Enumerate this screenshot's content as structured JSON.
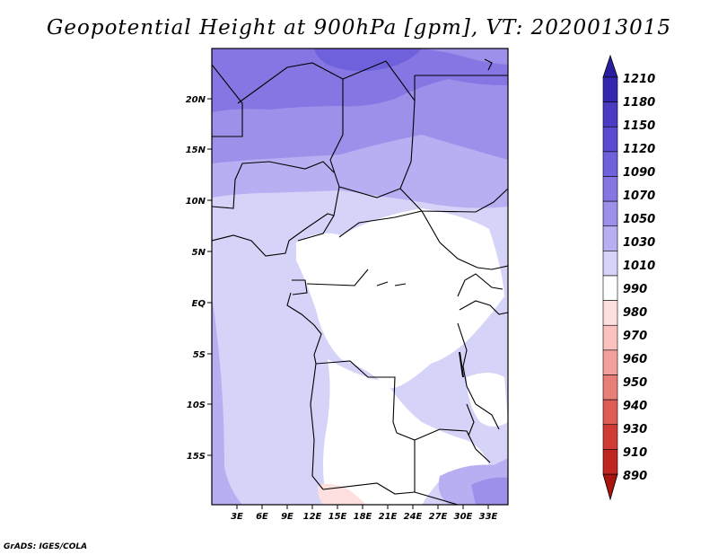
{
  "title": "Geopotential Height at 900hPa [gpm], VT: 2020013015",
  "footer": "GrADS: IGES/COLA",
  "map": {
    "lat_labels": [
      "20N",
      "15N",
      "10N",
      "5N",
      "EQ",
      "5S",
      "10S",
      "15S"
    ],
    "lon_labels": [
      "3E",
      "6E",
      "9E",
      "12E",
      "15E",
      "18E",
      "21E",
      "24E",
      "27E",
      "30E",
      "33E"
    ]
  },
  "legend": {
    "levels": [
      "1210",
      "1180",
      "1150",
      "1120",
      "1090",
      "1070",
      "1050",
      "1030",
      "1010",
      "990",
      "980",
      "970",
      "960",
      "950",
      "940",
      "930",
      "910",
      "890"
    ],
    "colors": [
      "#2a1f9e",
      "#3528b0",
      "#4a3bc2",
      "#5a4ad0",
      "#6f60dc",
      "#8576e4",
      "#9d90ea",
      "#b7aff2",
      "#d6d3f8",
      "#ffffff",
      "#fde0de",
      "#f9c2be",
      "#f2a09b",
      "#e87e78",
      "#de5c55",
      "#d03c35",
      "#c02620",
      "#a8150f"
    ]
  }
}
